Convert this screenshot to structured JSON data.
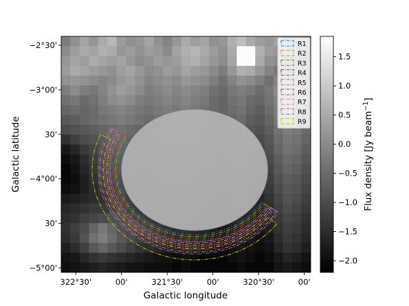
{
  "chart_data": {
    "type": "heatmap",
    "title": "",
    "xlabel": "Galactic longitude",
    "ylabel": "Galactic latitude",
    "x_tick_labels": [
      "322°30'",
      "00'",
      "321°30'",
      "00'",
      "320°30'",
      "00'"
    ],
    "x_tick_values_deg": [
      322.5,
      322.0,
      321.5,
      321.0,
      320.5,
      320.0
    ],
    "y_tick_labels": [
      "−2°30'",
      "−3°00'",
      "30'",
      "−4°00'",
      "30'",
      "−5°00'"
    ],
    "y_tick_values_deg": [
      -2.5,
      -3.0,
      -3.5,
      -4.0,
      -4.5,
      -5.0
    ],
    "xlim_deg": [
      322.66,
      319.93
    ],
    "ylim_deg": [
      -2.4,
      -5.05
    ],
    "colorbar": {
      "label": "Flux density [Jy beam$^{-1}$]",
      "label_text": "Flux density [Jy beam",
      "label_sup": "−1",
      "label_close": "]",
      "cmap": "gray",
      "vmin": -2.2,
      "vmax": 1.85,
      "ticks": [
        1.5,
        1.0,
        0.5,
        0.0,
        -0.5,
        -1.0,
        -1.5,
        -2.0
      ],
      "tick_labels": [
        "1.5",
        "1.0",
        "0.5",
        "0.0",
        "−0.5",
        "−1.0",
        "−1.5",
        "−2.0"
      ]
    },
    "mask": {
      "center_deg": [
        321.2,
        -3.9
      ],
      "a_deg": 0.8,
      "b_deg": 0.68,
      "fill": "#b4b4b4"
    },
    "grid_cols": 27,
    "grid_rows": 24,
    "pixel_values": [
      [
        -0.2,
        0.1,
        0.4,
        0.2,
        0.5,
        0.7,
        0.3,
        0.1,
        0.2,
        0.4,
        0.1,
        -0.1,
        0.2,
        0.5,
        0.3,
        0.4,
        0.1,
        0.2,
        0.6,
        0.8,
        0.5,
        0.3,
        0.2,
        0.4,
        0.1,
        0.0,
        -0.2
      ],
      [
        0.0,
        0.3,
        0.5,
        0.4,
        0.6,
        0.5,
        0.2,
        0.3,
        0.1,
        0.3,
        0.2,
        0.0,
        0.4,
        0.6,
        0.7,
        0.5,
        0.3,
        0.1,
        0.5,
        1.8,
        1.8,
        0.6,
        0.3,
        0.2,
        0.1,
        -0.1,
        -0.3
      ],
      [
        0.2,
        0.4,
        0.3,
        0.5,
        0.4,
        0.3,
        0.4,
        0.2,
        0.0,
        0.1,
        0.3,
        0.2,
        0.3,
        0.5,
        0.6,
        0.4,
        0.2,
        0.0,
        0.4,
        1.8,
        1.8,
        0.5,
        0.1,
        0.0,
        -0.2,
        -0.3,
        -0.4
      ],
      [
        0.3,
        0.5,
        0.4,
        0.3,
        0.2,
        0.1,
        0.3,
        0.4,
        0.2,
        0.0,
        0.1,
        0.3,
        0.2,
        0.4,
        0.3,
        0.2,
        0.0,
        -0.2,
        0.2,
        0.6,
        0.5,
        0.2,
        -0.1,
        -0.3,
        -0.2,
        -0.1,
        -0.3
      ],
      [
        0.1,
        0.2,
        0.1,
        0.0,
        -0.1,
        0.0,
        0.2,
        0.3,
        0.1,
        -0.1,
        0.0,
        0.1,
        0.0,
        0.2,
        0.1,
        0.0,
        -0.2,
        -0.4,
        -0.1,
        0.1,
        0.0,
        -0.2,
        -0.4,
        -0.1,
        0.2,
        0.0,
        -0.2
      ],
      [
        -0.2,
        0.0,
        -0.2,
        -0.3,
        -0.1,
        0.1,
        0.3,
        0.2,
        0.0,
        -0.2,
        -0.1,
        0.0,
        -0.1,
        0.0,
        -0.1,
        -0.2,
        -0.4,
        -0.5,
        -0.3,
        -0.2,
        -0.3,
        -0.5,
        -0.3,
        0.0,
        0.3,
        0.1,
        -0.1
      ],
      [
        -0.4,
        -0.3,
        -0.5,
        -0.4,
        -0.2,
        0.0,
        0.1,
        0.0,
        -0.2,
        -0.3,
        -0.2,
        -0.1,
        -0.2,
        -0.1,
        -0.2,
        -0.3,
        -0.5,
        -0.6,
        -0.4,
        -0.3,
        -0.5,
        -0.6,
        -0.4,
        -0.1,
        0.2,
        0.0,
        -0.2
      ],
      [
        -0.6,
        -0.5,
        -0.6,
        -0.5,
        -0.3,
        -0.2,
        -0.1,
        -0.2,
        -0.3,
        -0.4,
        -0.3,
        -0.2,
        -0.3,
        -0.2,
        -0.3,
        -0.4,
        -0.5,
        -0.6,
        -0.5,
        -0.4,
        -0.6,
        -0.7,
        -0.5,
        -0.2,
        0.1,
        -0.1,
        -0.3
      ],
      [
        -0.8,
        -0.7,
        -0.6,
        -0.5,
        -0.4,
        -0.3,
        -0.2,
        -0.3,
        -0.4,
        -0.5,
        -0.4,
        -0.3,
        -0.4,
        -0.3,
        -0.4,
        -0.5,
        -0.6,
        -0.7,
        -0.6,
        -0.5,
        -0.7,
        -0.8,
        -0.6,
        -0.3,
        0.0,
        -0.2,
        -0.4
      ],
      [
        -1.0,
        -0.9,
        -0.8,
        -0.7,
        -0.6,
        -0.5,
        -0.4,
        -0.5,
        -0.6,
        -0.6,
        -0.5,
        -0.4,
        -0.5,
        -0.4,
        -0.5,
        -0.6,
        -0.7,
        -0.8,
        -0.7,
        -0.6,
        -0.8,
        -0.9,
        -0.7,
        -0.4,
        -0.2,
        -0.3,
        -0.5
      ],
      [
        -1.4,
        -1.2,
        -1.0,
        -0.9,
        -0.8,
        -0.6,
        -0.5,
        -0.6,
        -0.7,
        -0.7,
        -0.6,
        -0.5,
        -0.6,
        -0.5,
        -0.6,
        -0.7,
        -0.8,
        -0.9,
        -0.8,
        -0.7,
        -0.9,
        -1.0,
        -0.8,
        -0.5,
        -0.3,
        -0.4,
        -0.6
      ],
      [
        -1.8,
        -1.6,
        -1.3,
        -1.1,
        -0.9,
        -0.7,
        -0.6,
        -0.7,
        -0.8,
        -0.8,
        -0.7,
        -0.6,
        -0.7,
        -0.6,
        -0.7,
        -0.8,
        -0.9,
        -1.0,
        -0.9,
        -0.8,
        -1.0,
        -1.1,
        -0.9,
        -0.6,
        -0.4,
        -0.5,
        -0.7
      ],
      [
        -2.0,
        -1.8,
        -1.5,
        -1.2,
        -1.0,
        -0.8,
        -0.7,
        -0.8,
        -0.9,
        -0.9,
        -0.8,
        -0.7,
        -0.8,
        -0.7,
        -0.8,
        -0.9,
        -1.0,
        -1.1,
        -1.0,
        -0.9,
        -1.1,
        -1.2,
        -1.0,
        -0.7,
        -0.5,
        -0.6,
        -0.8
      ],
      [
        -2.1,
        -1.9,
        -1.6,
        -1.3,
        -1.1,
        -0.9,
        -0.8,
        -0.9,
        -1.0,
        -1.0,
        -0.9,
        -0.8,
        -0.9,
        -0.8,
        -0.9,
        -1.0,
        -1.1,
        -1.2,
        -1.1,
        -1.0,
        -1.2,
        -1.3,
        -1.1,
        -0.8,
        -0.6,
        -0.7,
        -0.9
      ],
      [
        -2.1,
        -2.0,
        -1.7,
        -1.4,
        -1.2,
        -1.0,
        -0.9,
        -1.0,
        -1.1,
        -1.1,
        -1.0,
        -0.9,
        -1.0,
        -0.9,
        -1.0,
        -1.1,
        -1.2,
        -1.3,
        -1.2,
        -1.1,
        -1.3,
        -1.4,
        -1.2,
        -0.9,
        -0.7,
        -0.8,
        -1.0
      ],
      [
        -2.0,
        -1.9,
        -1.7,
        -1.5,
        -1.3,
        -1.1,
        -1.0,
        -1.1,
        -1.2,
        -1.2,
        -1.1,
        -1.0,
        -1.1,
        -1.0,
        -1.1,
        -1.2,
        -1.3,
        -1.4,
        -1.3,
        -1.2,
        -1.4,
        -1.5,
        -1.3,
        -1.0,
        -0.8,
        -0.9,
        -1.1
      ],
      [
        -1.8,
        -1.7,
        -1.6,
        -1.5,
        -1.4,
        -1.2,
        -1.1,
        -1.2,
        -1.3,
        -1.3,
        -1.2,
        -1.1,
        -1.2,
        -1.1,
        -1.2,
        -1.3,
        -1.4,
        -1.5,
        -1.4,
        -1.3,
        -1.5,
        -1.6,
        -1.4,
        -1.1,
        -0.9,
        -1.0,
        -1.2
      ],
      [
        -1.6,
        -1.5,
        -1.4,
        -1.3,
        -1.3,
        -1.2,
        -1.1,
        -1.2,
        -1.3,
        -1.4,
        -1.3,
        -1.2,
        -1.3,
        -1.2,
        -1.3,
        -1.4,
        -1.5,
        -1.6,
        -1.5,
        -1.4,
        -1.5,
        -1.6,
        -1.5,
        -1.2,
        -1.0,
        -1.1,
        -1.3
      ],
      [
        -1.5,
        -1.4,
        -1.2,
        -1.1,
        -1.0,
        -0.9,
        -1.0,
        -1.1,
        -1.2,
        -1.3,
        -1.4,
        -1.3,
        -1.4,
        -1.3,
        -1.4,
        -1.5,
        -1.6,
        -1.7,
        -1.6,
        -1.5,
        -1.6,
        -1.7,
        -1.6,
        -1.3,
        -1.1,
        -1.2,
        -1.4
      ],
      [
        -1.4,
        -1.2,
        -1.0,
        -0.6,
        -0.3,
        -0.6,
        -0.9,
        -1.0,
        -1.1,
        -1.2,
        -1.3,
        -1.4,
        -1.5,
        -1.4,
        -1.5,
        -1.6,
        -1.7,
        -1.8,
        -1.7,
        -1.6,
        -1.7,
        -1.8,
        -1.7,
        -1.4,
        -1.2,
        -1.3,
        -1.5
      ],
      [
        -1.5,
        -1.3,
        -0.9,
        -0.4,
        -0.2,
        -0.5,
        -0.8,
        -1.0,
        -1.2,
        -1.3,
        -1.4,
        -1.5,
        -1.6,
        -1.5,
        -1.6,
        -1.7,
        -1.8,
        -1.9,
        -1.8,
        -1.7,
        -1.8,
        -1.9,
        -1.8,
        -1.5,
        -1.3,
        -1.4,
        -1.6
      ],
      [
        -1.7,
        -1.5,
        -1.2,
        -0.8,
        -0.6,
        -0.8,
        -1.0,
        -1.2,
        -1.4,
        -1.5,
        -1.6,
        -1.7,
        -1.8,
        -1.7,
        -1.8,
        -1.9,
        -2.0,
        -2.0,
        -1.9,
        -1.8,
        -1.9,
        -2.0,
        -1.9,
        -1.6,
        -1.4,
        -1.5,
        -1.7
      ],
      [
        -1.9,
        -1.8,
        -1.6,
        -1.4,
        -1.3,
        -1.4,
        -1.5,
        -1.6,
        -1.7,
        -1.8,
        -1.9,
        -1.9,
        -2.0,
        -1.9,
        -2.0,
        -2.1,
        -2.1,
        -2.1,
        -2.0,
        -1.9,
        -2.0,
        -2.1,
        -2.0,
        -1.8,
        -1.6,
        -1.7,
        -1.9
      ],
      [
        -2.0,
        -1.9,
        -1.8,
        -1.7,
        -1.6,
        -1.7,
        -1.8,
        -1.9,
        -1.9,
        -2.0,
        -2.0,
        -2.0,
        -2.1,
        -2.0,
        -2.1,
        -2.1,
        -2.1,
        -2.1,
        -2.1,
        -2.0,
        -2.1,
        -2.1,
        -2.1,
        -1.9,
        -1.8,
        -1.9,
        -2.0
      ]
    ],
    "regions": [
      {
        "name": "R1",
        "color": "#1f77b4"
      },
      {
        "name": "R2",
        "color": "#ff7f0e"
      },
      {
        "name": "R3",
        "color": "#2ca02c"
      },
      {
        "name": "R4",
        "color": "#d62728"
      },
      {
        "name": "R5",
        "color": "#9467bd"
      },
      {
        "name": "R6",
        "color": "#8c564b"
      },
      {
        "name": "R7",
        "color": "#e377c2"
      },
      {
        "name": "R8",
        "color": "#7f7f7f"
      },
      {
        "name": "R9",
        "color": "#bcbd22"
      }
    ],
    "legend": {
      "position": "top-right"
    }
  }
}
